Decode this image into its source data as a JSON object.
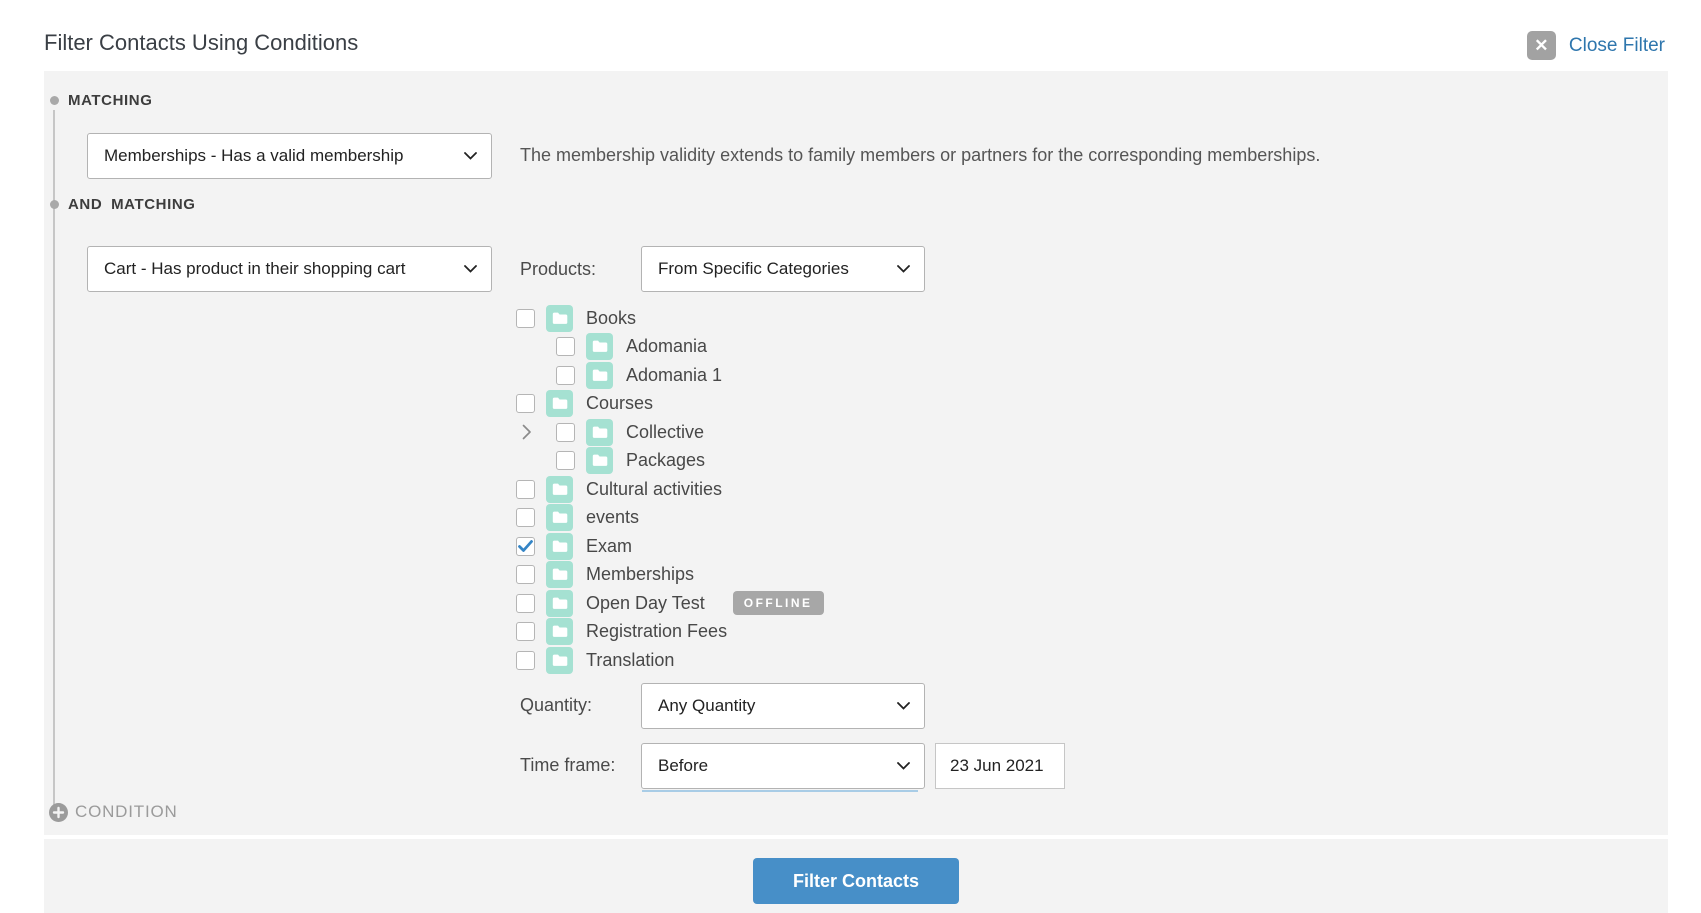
{
  "header": {
    "title": "Filter Contacts Using Conditions",
    "close_label": "Close Filter"
  },
  "conditions": [
    {
      "heading": "MATCHING",
      "select_value": "Memberships - Has a valid membership",
      "description": "The membership validity extends to family members or partners for the corresponding memberships."
    },
    {
      "heading": "AND MATCHING",
      "select_value": "Cart - Has product in their shopping cart",
      "products_label": "Products:",
      "products_select_value": "From Specific Categories",
      "quantity_label": "Quantity:",
      "quantity_select_value": "Any Quantity",
      "timeframe_label": "Time frame:",
      "timeframe_select_value": "Before",
      "timeframe_date_value": "23 Jun 2021"
    }
  ],
  "category_tree": [
    {
      "label": "Books",
      "level": 0,
      "checked": false
    },
    {
      "label": "Adomania",
      "level": 1,
      "checked": false
    },
    {
      "label": "Adomania 1",
      "level": 1,
      "checked": false
    },
    {
      "label": "Courses",
      "level": 0,
      "checked": false
    },
    {
      "label": "Collective",
      "level": 1,
      "checked": false,
      "expander": true
    },
    {
      "label": "Packages",
      "level": 1,
      "checked": false
    },
    {
      "label": "Cultural activities",
      "level": 0,
      "checked": false
    },
    {
      "label": "events",
      "level": 0,
      "checked": false
    },
    {
      "label": "Exam",
      "level": 0,
      "checked": true
    },
    {
      "label": "Memberships",
      "level": 0,
      "checked": false
    },
    {
      "label": "Open Day Test",
      "level": 0,
      "checked": false,
      "badge": "OFFLINE"
    },
    {
      "label": "Registration Fees",
      "level": 0,
      "checked": false
    },
    {
      "label": "Translation",
      "level": 0,
      "checked": false
    }
  ],
  "add_condition_label": "CONDITION",
  "footer": {
    "button_label": "Filter Contacts"
  },
  "colors": {
    "panel_bg": "#f3f3f3",
    "folder_mint": "#a5e1d2",
    "check_blue": "#3585c6",
    "button_blue": "#478fc8",
    "link_blue": "#2e76ad",
    "badge_gray": "#a7a7a7"
  }
}
